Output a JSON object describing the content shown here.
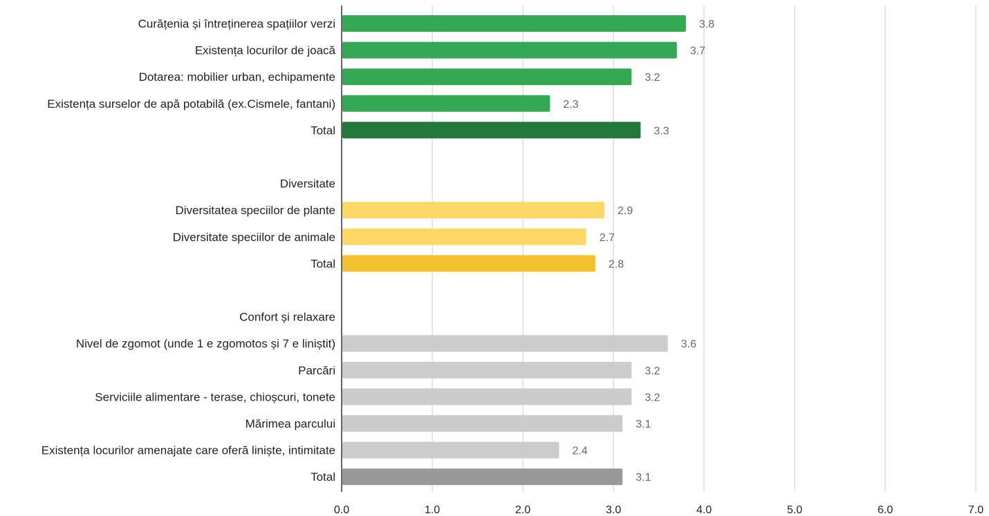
{
  "chart_data": {
    "type": "bar",
    "orientation": "horizontal",
    "title": "",
    "xlabel": "",
    "ylabel": "",
    "xlim": [
      0,
      7
    ],
    "x_ticks": [
      "0.0",
      "1.0",
      "2.0",
      "3.0",
      "4.0",
      "5.0",
      "6.0",
      "7.0"
    ],
    "grid": true,
    "legend": "none",
    "categories": [
      "Curățenia și întreținerea spațiilor verzi",
      "Existența locurilor de joacă",
      "Dotarea: mobilier urban, echipamente",
      "Existența surselor de apă potabilă (ex.Cismele, fantani)",
      "Total",
      "",
      "Diversitate",
      "Diversitatea speciilor de plante",
      "Diversitate speciilor de animale",
      "Total",
      "",
      "Confort și relaxare",
      "Nivel de zgomot (unde 1 e zgomotos și 7 e liniștit)",
      "Parcări",
      "Serviciile alimentare - terase, chioșcuri, tonete",
      "Mărimea parcului",
      "Existența locurilor amenajate care oferă liniște, intimitate",
      "Total"
    ],
    "values": [
      3.8,
      3.7,
      3.2,
      2.3,
      3.3,
      null,
      null,
      2.9,
      2.7,
      2.8,
      null,
      null,
      3.6,
      3.2,
      3.2,
      3.1,
      2.4,
      3.1
    ],
    "value_labels": [
      "3.8",
      "3.7",
      "3.2",
      "2.3",
      "3.3",
      "",
      "",
      "2.9",
      "2.7",
      "2.8",
      "",
      "",
      "3.6",
      "3.2",
      "3.2",
      "3.1",
      "2.4",
      "3.1"
    ],
    "bar_colors": [
      "#34a853",
      "#34a853",
      "#34a853",
      "#34a853",
      "#23793d",
      null,
      null,
      "#fdd866",
      "#fdd866",
      "#f2c12e",
      null,
      null,
      "#cccccc",
      "#cccccc",
      "#cccccc",
      "#cccccc",
      "#cccccc",
      "#999999"
    ]
  }
}
